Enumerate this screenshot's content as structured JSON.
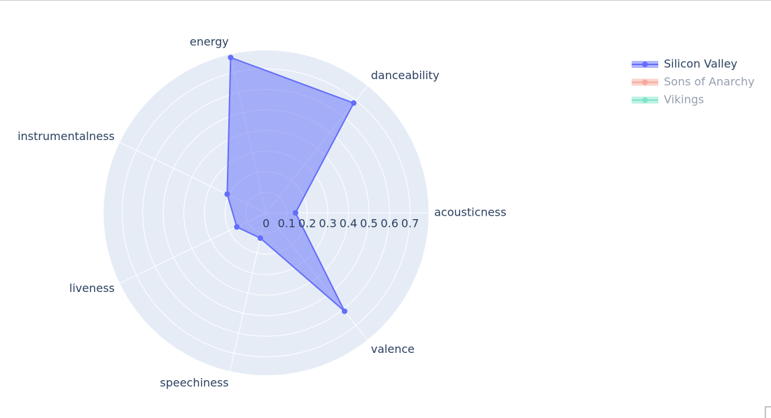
{
  "chart_data": {
    "type": "radar",
    "categories": [
      "acousticness",
      "danceability",
      "energy",
      "instrumentalness",
      "liveness",
      "speechiness",
      "valence"
    ],
    "rlim": [
      0,
      0.79
    ],
    "rticks": [
      0,
      0.1,
      0.2,
      0.3,
      0.4,
      0.5,
      0.6,
      0.7
    ],
    "series": [
      {
        "name": "Silicon Valley",
        "color": "#636efa",
        "visible": true,
        "values": [
          0.143,
          0.683,
          0.775,
          0.21,
          0.158,
          0.126,
          0.612
        ]
      },
      {
        "name": "Sons of Anarchy",
        "color": "#EF553B",
        "visible": "legendonly"
      },
      {
        "name": "Vikings",
        "color": "#00cc96",
        "visible": "legendonly"
      }
    ]
  }
}
